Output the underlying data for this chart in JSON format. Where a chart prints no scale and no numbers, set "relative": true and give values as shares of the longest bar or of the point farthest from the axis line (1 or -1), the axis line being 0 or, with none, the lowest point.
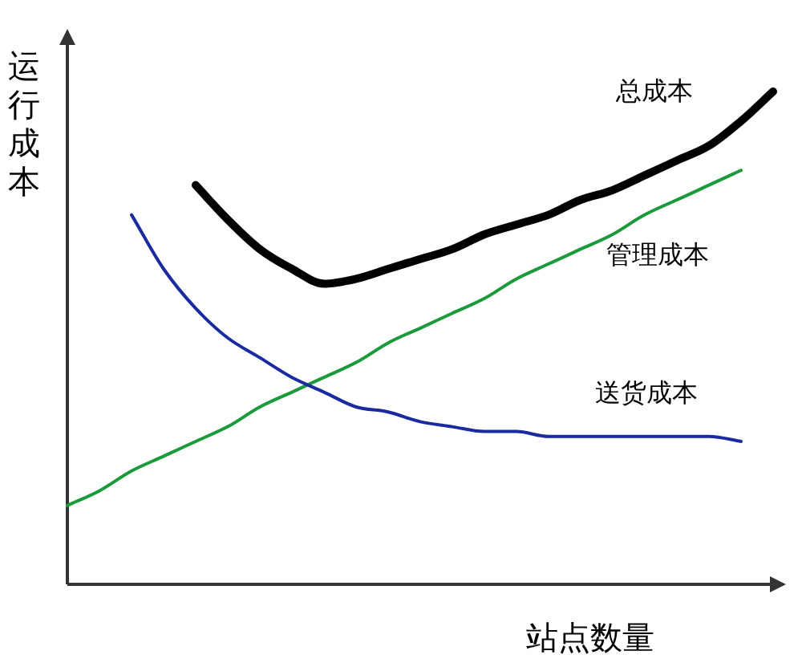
{
  "chart_data": {
    "type": "line",
    "relative": true,
    "ylabel": "运行成本",
    "xlabel": "站点数量",
    "categories": [
      null,
      null,
      null,
      null,
      null,
      null,
      null,
      null,
      null,
      null,
      null,
      null,
      null,
      null,
      null,
      null,
      null,
      null,
      null,
      null,
      null,
      null,
      null
    ],
    "series": [
      {
        "name": "总成本",
        "color": "#000000",
        "values": [
          null,
          null,
          null,
          null,
          0.81,
          0.74,
          0.68,
          0.64,
          0.61,
          0.62,
          0.64,
          0.66,
          0.68,
          0.71,
          0.73,
          0.75,
          0.78,
          0.8,
          0.83,
          0.86,
          0.89,
          0.94,
          1.0
        ]
      },
      {
        "name": "管理成本",
        "color": "#1a9a3a",
        "values": [
          0.16,
          0.19,
          0.23,
          0.26,
          0.29,
          0.32,
          0.36,
          0.39,
          0.42,
          0.45,
          0.49,
          0.52,
          0.55,
          0.58,
          0.62,
          0.65,
          0.68,
          0.71,
          0.75,
          0.78,
          0.81,
          0.84,
          null
        ]
      },
      {
        "name": "送货成本",
        "color": "#1a2aa0",
        "values": [
          null,
          null,
          0.75,
          0.64,
          0.56,
          0.5,
          0.46,
          0.42,
          0.39,
          0.36,
          0.35,
          0.33,
          0.32,
          0.31,
          0.31,
          0.3,
          0.3,
          0.3,
          0.3,
          0.3,
          0.3,
          0.29,
          null
        ]
      }
    ]
  }
}
